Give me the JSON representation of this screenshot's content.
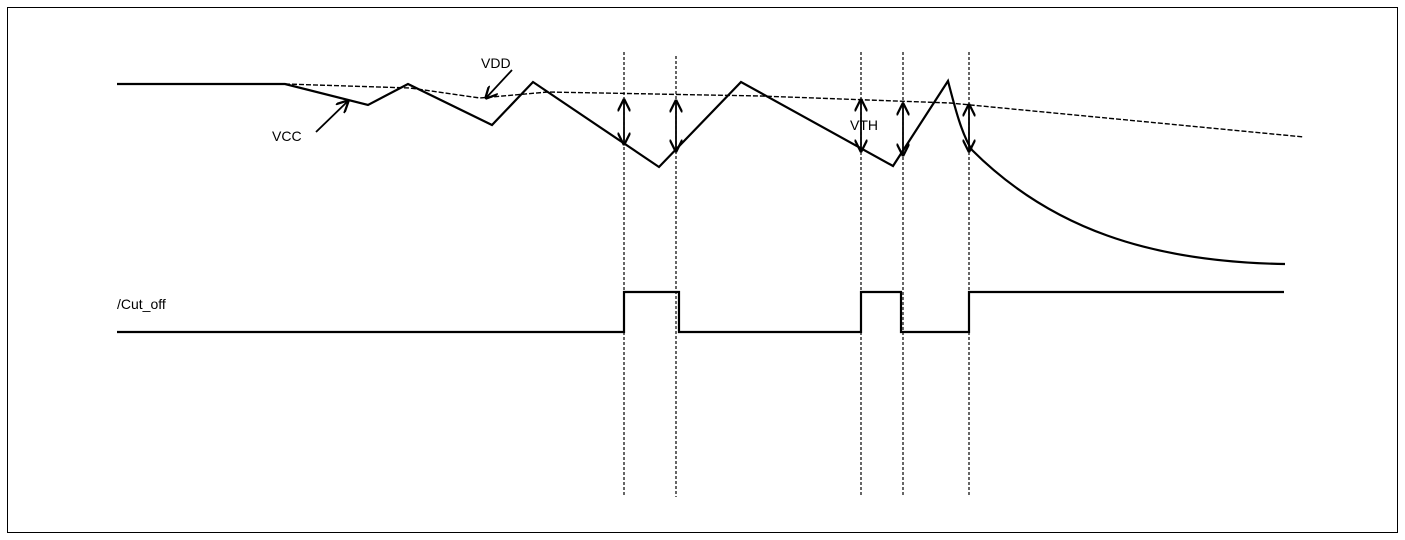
{
  "labels": {
    "vdd": "VDD",
    "vcc": "VCC",
    "vth": "VTH",
    "cut_off": "/Cut_off"
  },
  "colors": {
    "background": "#ffffff",
    "stroke": "#000000"
  }
}
